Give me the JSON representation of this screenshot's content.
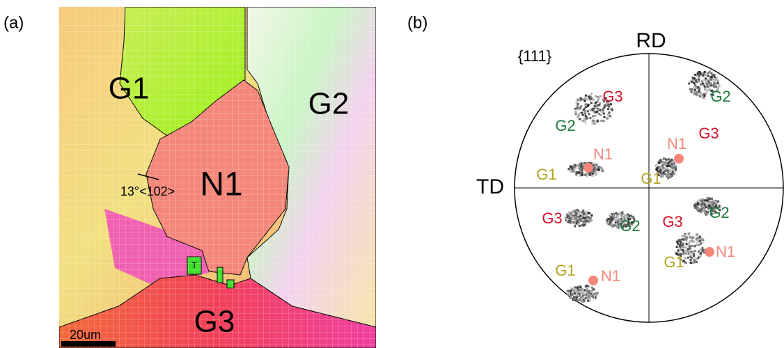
{
  "panel_a": {
    "label": "(a)",
    "grains": [
      "G1",
      "G2",
      "N1",
      "G3"
    ],
    "twin": "T",
    "misorientation": "13°<102>",
    "scale_bar": "20um"
  },
  "panel_b": {
    "label": "(b)",
    "plane": "{111}",
    "rd": "RD",
    "td": "TD",
    "pole_labels": [
      "G3",
      "G2",
      "N1",
      "G1",
      "G2",
      "G3",
      "N1",
      "G1",
      "G3",
      "G2",
      "G2",
      "G3",
      "N1",
      "G1",
      "G1",
      "N1"
    ]
  }
}
